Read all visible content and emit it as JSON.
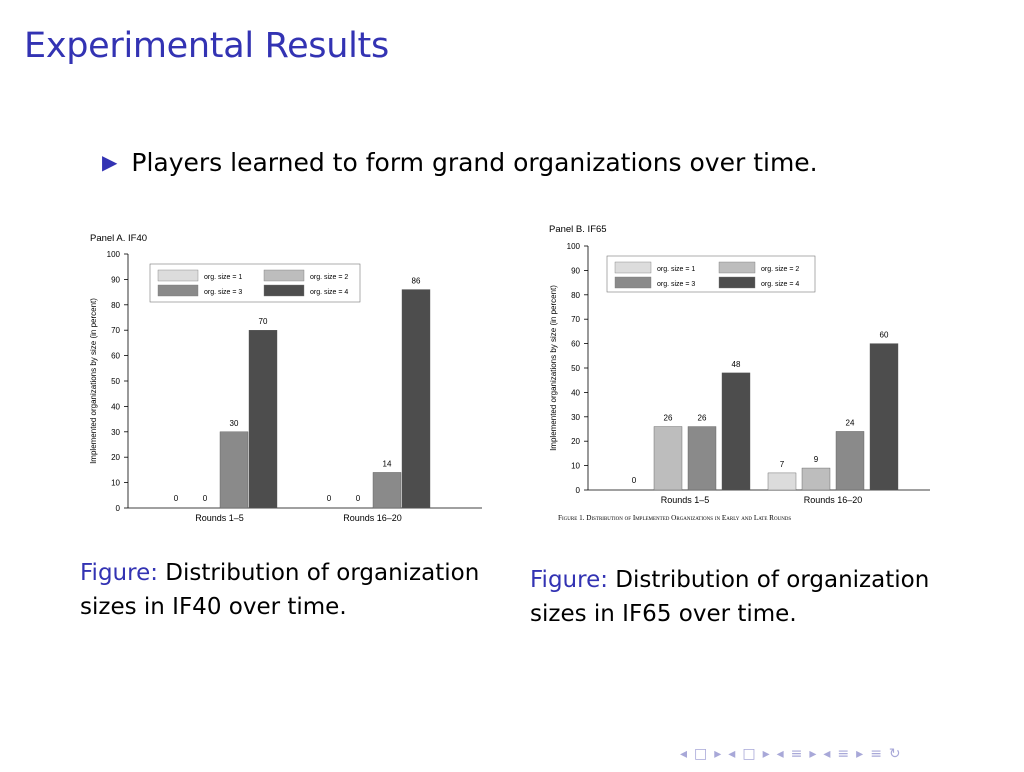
{
  "slide": {
    "title": "Experimental Results",
    "bullet": "Players learned to form grand organizations over time.",
    "bullet_marker": "▶"
  },
  "captions": [
    {
      "prefix": "Figure:",
      "text": "Distribution of organization sizes in IF40 over time."
    },
    {
      "prefix": "Figure:",
      "text": "Distribution of organization sizes in IF65 over time."
    }
  ],
  "colors": {
    "title": "#3333b3",
    "size1": "#dcdcdc",
    "size2": "#bdbdbd",
    "size3": "#8a8a8a",
    "size4": "#4d4d4d"
  },
  "nav": {
    "symbols": [
      "◂",
      "□",
      "▸",
      "◂",
      "□",
      "▸",
      "◂",
      "≡",
      "▸",
      "◂",
      "≡",
      "▸",
      "≡",
      "↻"
    ]
  },
  "chart_data": [
    {
      "type": "bar",
      "title": "Panel A. IF40",
      "ylabel": "Implemented organizations by size (in percent)",
      "xlabel": "",
      "ylim": [
        0,
        100
      ],
      "yticks": [
        0,
        10,
        20,
        30,
        40,
        50,
        60,
        70,
        80,
        90,
        100
      ],
      "categories": [
        "Rounds 1–5",
        "Rounds 16–20"
      ],
      "series": [
        {
          "name": "org. size = 1",
          "values": [
            0,
            0
          ]
        },
        {
          "name": "org. size = 2",
          "values": [
            0,
            0
          ]
        },
        {
          "name": "org. size = 3",
          "values": [
            30,
            14
          ]
        },
        {
          "name": "org. size = 4",
          "values": [
            70,
            86
          ]
        }
      ],
      "legend": "top-left",
      "grid": false
    },
    {
      "type": "bar",
      "title": "Panel B. IF65",
      "ylabel": "Implemented organizations by size (in percent)",
      "xlabel": "",
      "ylim": [
        0,
        100
      ],
      "yticks": [
        0,
        10,
        20,
        30,
        40,
        50,
        60,
        70,
        80,
        90,
        100
      ],
      "categories": [
        "Rounds 1–5",
        "Rounds 16–20"
      ],
      "series": [
        {
          "name": "org. size = 1",
          "values": [
            0,
            7
          ]
        },
        {
          "name": "org. size = 2",
          "values": [
            26,
            9
          ]
        },
        {
          "name": "org. size = 3",
          "values": [
            26,
            24
          ]
        },
        {
          "name": "org. size = 4",
          "values": [
            48,
            60
          ]
        }
      ],
      "legend": "top-left",
      "grid": false,
      "figure_caption": "Figure 1. Distribution of Implemented Organizations in Early and Late Rounds"
    }
  ]
}
